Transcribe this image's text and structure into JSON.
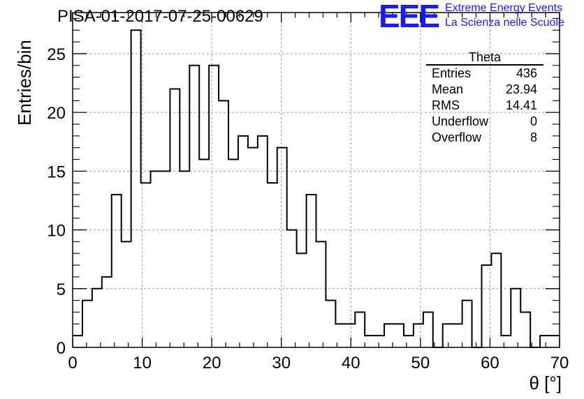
{
  "header": {
    "run_title": "PISA-01-2017-07-25-00629",
    "logo": "EEE",
    "logo_line1": "Extreme Energy Events",
    "logo_line2": "La Scienza nelle Scuole",
    "logo_color": "#1a1aff"
  },
  "stats_box": {
    "title": "Theta",
    "rows": [
      {
        "label": "Entries",
        "value": "436"
      },
      {
        "label": "Mean",
        "value": "23.94"
      },
      {
        "label": "RMS",
        "value": "14.41"
      },
      {
        "label": "Underflow",
        "value": "0"
      },
      {
        "label": "Overflow",
        "value": "8"
      }
    ]
  },
  "chart_data": {
    "type": "bar",
    "style": "step-histogram",
    "title": "",
    "xlabel": "θ [°]",
    "ylabel": "Entries/bin",
    "xlim": [
      0,
      70
    ],
    "ylim": [
      0,
      28.5
    ],
    "bin_width": 1.4,
    "values": [
      1,
      4,
      5,
      6,
      13,
      9,
      27,
      14,
      15,
      15,
      22,
      15,
      24,
      16,
      24,
      21,
      16,
      18,
      17,
      18,
      14,
      17,
      10,
      8,
      13,
      9,
      4,
      2,
      2,
      3,
      1,
      1,
      2,
      2,
      1,
      2,
      3,
      0,
      2,
      2,
      4,
      0,
      7,
      8,
      1,
      5,
      3,
      0,
      1,
      1
    ],
    "x_ticks": [
      "0",
      "10",
      "20",
      "30",
      "40",
      "50",
      "60",
      "70"
    ],
    "y_ticks": [
      "0",
      "5",
      "10",
      "15",
      "20",
      "25"
    ],
    "grid": true,
    "line_color": "#000000"
  }
}
